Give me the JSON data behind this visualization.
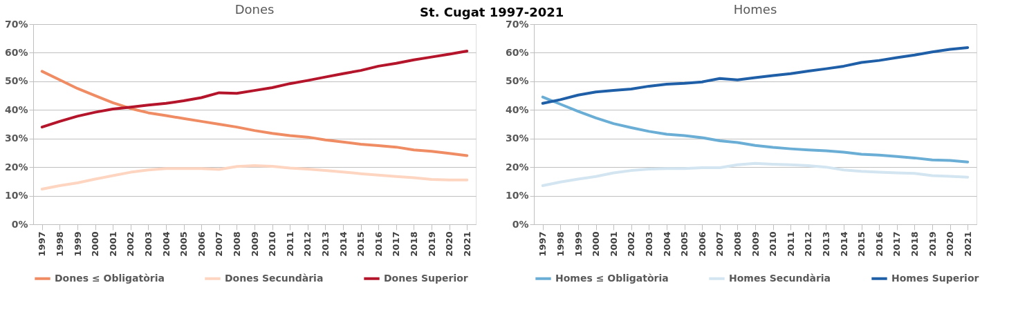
{
  "chart_data": [
    {
      "type": "line",
      "title": "Dones",
      "annotations": [
        "St. Cugat  1997-2021"
      ],
      "legend": "bottom",
      "grid": "y",
      "marker": "none",
      "line_style": "solid",
      "categories": [
        "1997",
        "1998",
        "1999",
        "2000",
        "2001",
        "2002",
        "2003",
        "2004",
        "2005",
        "2006",
        "2007",
        "2008",
        "2009",
        "2010",
        "2011",
        "2012",
        "2013",
        "2014",
        "2015",
        "2016",
        "2017",
        "2018",
        "2019",
        "2020",
        "2021"
      ],
      "ylim": [
        0,
        70
      ],
      "yticks": [
        {
          "value": 0,
          "label": "0%"
        },
        {
          "value": 10,
          "label": "10%"
        },
        {
          "value": 20,
          "label": "20%"
        },
        {
          "value": 30,
          "label": "30%"
        },
        {
          "value": 40,
          "label": "40%"
        },
        {
          "value": 50,
          "label": "50%"
        },
        {
          "value": 60,
          "label": "60%"
        },
        {
          "value": 70,
          "label": "70%"
        }
      ],
      "series": [
        {
          "name": "Dones ≤ Obligatòria",
          "color": "#f08c64",
          "values": [
            53.5,
            50.5,
            47.5,
            45,
            42.5,
            40.5,
            39,
            38,
            37,
            36,
            35,
            34,
            32.8,
            31.8,
            31,
            30.5,
            29.5,
            28.8,
            28,
            27.5,
            27,
            26,
            25.5,
            24.8,
            24
          ]
        },
        {
          "name": "Dones Secundària",
          "color": "#fdd5c0",
          "values": [
            12.3,
            13.5,
            14.5,
            15.8,
            17,
            18.2,
            19,
            19.5,
            19.5,
            19.5,
            19.2,
            20.2,
            20.5,
            20.3,
            19.7,
            19.3,
            18.8,
            18.3,
            17.7,
            17.2,
            16.7,
            16.3,
            15.7,
            15.5,
            15.5
          ]
        },
        {
          "name": "Dones Superior",
          "color": "#b5152b",
          "values": [
            34,
            36,
            37.8,
            39.2,
            40.3,
            41,
            41.7,
            42.3,
            43.2,
            44.3,
            46,
            45.8,
            46.8,
            47.8,
            49.2,
            50.3,
            51.5,
            52.7,
            53.8,
            55.3,
            56.3,
            57.5,
            58.5,
            59.5,
            60.6
          ]
        }
      ]
    },
    {
      "type": "line",
      "title": "Homes",
      "legend": "bottom",
      "grid": "y",
      "marker": "none",
      "line_style": "solid",
      "categories": [
        "1997",
        "1998",
        "1999",
        "2000",
        "2001",
        "2002",
        "2003",
        "2004",
        "2005",
        "2006",
        "2007",
        "2008",
        "2009",
        "2010",
        "2011",
        "2012",
        "2013",
        "2014",
        "2015",
        "2016",
        "2017",
        "2018",
        "2019",
        "2020",
        "2021"
      ],
      "ylim": [
        0,
        70
      ],
      "yticks": [
        {
          "value": 0,
          "label": "0%"
        },
        {
          "value": 10,
          "label": "10%"
        },
        {
          "value": 20,
          "label": "20%"
        },
        {
          "value": 30,
          "label": "30%"
        },
        {
          "value": 40,
          "label": "40%"
        },
        {
          "value": 50,
          "label": "50%"
        },
        {
          "value": 60,
          "label": "60%"
        },
        {
          "value": 70,
          "label": "70%"
        }
      ],
      "series": [
        {
          "name": "Homes ≤ Obligatòria",
          "color": "#6aaed6",
          "values": [
            44.5,
            42,
            39.5,
            37.2,
            35.2,
            33.8,
            32.5,
            31.5,
            31,
            30.3,
            29.2,
            28.6,
            27.6,
            26.9,
            26.4,
            26,
            25.7,
            25.2,
            24.5,
            24.2,
            23.7,
            23.2,
            22.5,
            22.3,
            21.8
          ]
        },
        {
          "name": "Homes Secundària",
          "color": "#d2e5f1",
          "values": [
            13.5,
            14.8,
            15.8,
            16.7,
            18,
            18.8,
            19.3,
            19.5,
            19.5,
            19.8,
            19.8,
            20.8,
            21.3,
            21,
            20.8,
            20.5,
            20,
            19,
            18.5,
            18.2,
            18,
            17.8,
            17,
            16.8,
            16.5
          ]
        },
        {
          "name": "Homes Superior",
          "color": "#1f5fa8",
          "values": [
            42.3,
            43.6,
            45.2,
            46.3,
            46.8,
            47.3,
            48.3,
            49,
            49.3,
            49.8,
            51,
            50.5,
            51.3,
            52,
            52.7,
            53.6,
            54.4,
            55.3,
            56.6,
            57.3,
            58.3,
            59.2,
            60.3,
            61.2,
            61.8
          ]
        }
      ]
    }
  ]
}
